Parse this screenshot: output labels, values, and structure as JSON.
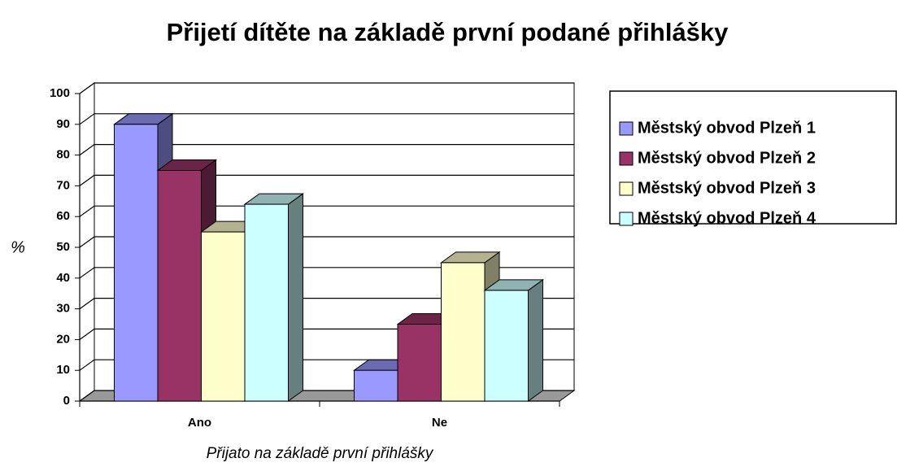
{
  "chart_data": {
    "type": "bar3d",
    "title": "Přijetí dítěte na základě první podané přihlášky",
    "x_label": "Přijato na základě první přihlášky",
    "y_label": "%",
    "categories": [
      "Ano",
      "Ne"
    ],
    "series": [
      {
        "name": "Městský obvod Plzeň 1",
        "color": "#9999ff",
        "values": [
          90,
          10
        ]
      },
      {
        "name": "Městský obvod Plzeň 2",
        "color": "#993366",
        "values": [
          75,
          25
        ]
      },
      {
        "name": "Městský obvod Plzeň 3",
        "color": "#ffffcc",
        "values": [
          55,
          45
        ]
      },
      {
        "name": "Městský obvod Plzeň 4",
        "color": "#ccffff",
        "values": [
          64,
          36
        ]
      }
    ],
    "ylim": [
      0,
      100
    ],
    "yticks": [
      0,
      10,
      20,
      30,
      40,
      50,
      60,
      70,
      80,
      90,
      100
    ],
    "grid": true,
    "legend": "right"
  }
}
